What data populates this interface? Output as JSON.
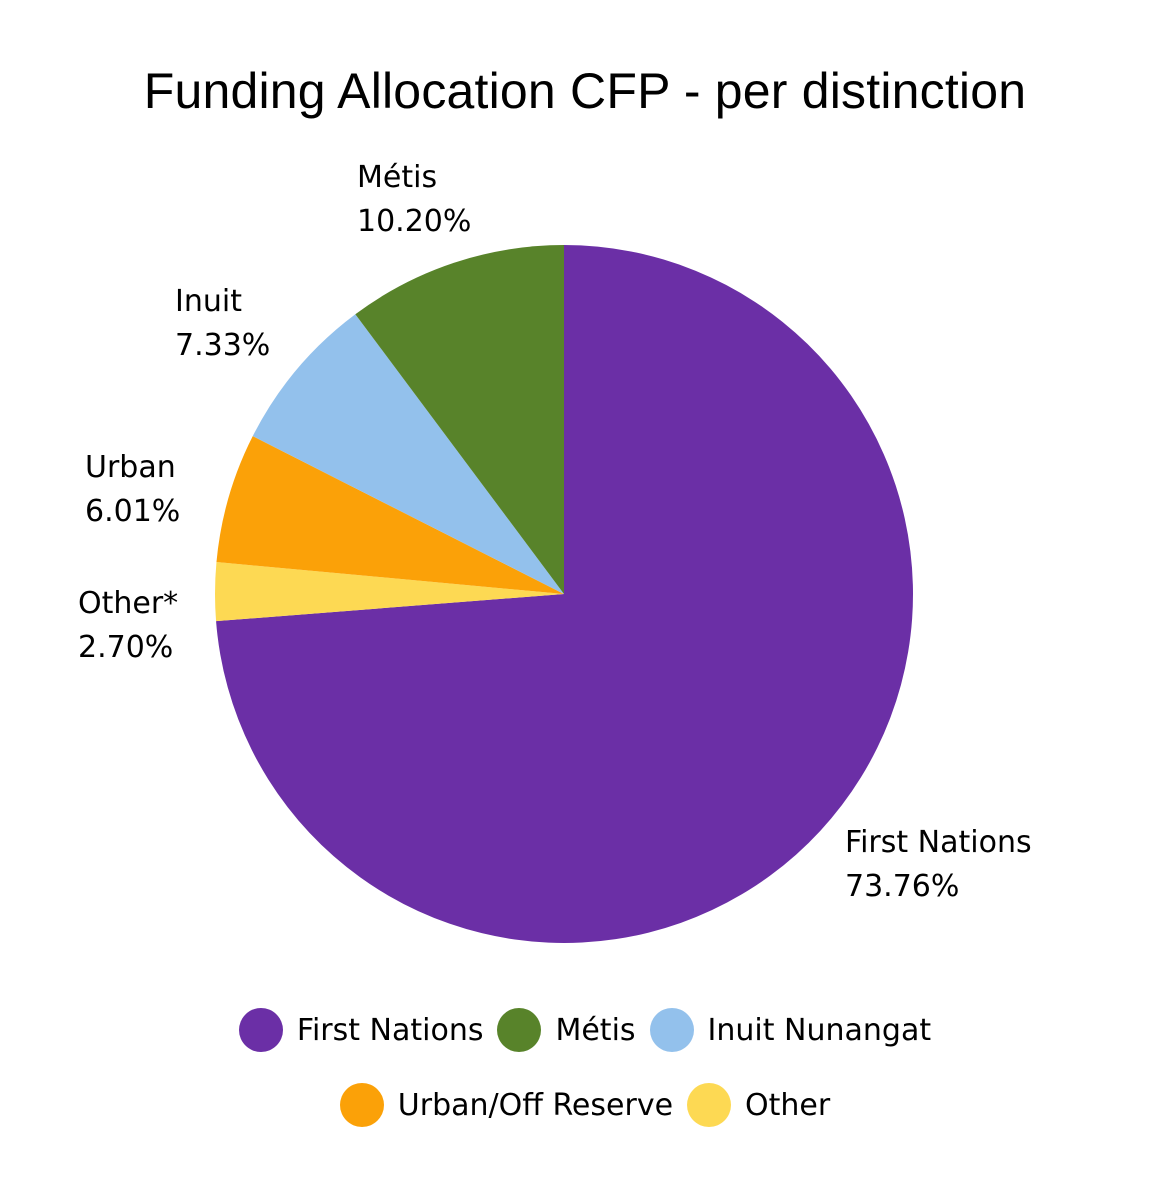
{
  "chart_data": {
    "type": "pie",
    "title": "Funding Allocation CFP - per distinction",
    "slices": [
      {
        "name": "First Nations",
        "label": "First Nations",
        "value": 73.76,
        "display": "73.76%",
        "color": "#6b2fa6"
      },
      {
        "name": "Other",
        "label": "Other*",
        "value": 2.7,
        "display": "2.70%",
        "color": "#fdd953"
      },
      {
        "name": "Urban/Off Reserve",
        "label": "Urban",
        "value": 6.01,
        "display": "6.01%",
        "color": "#fba108"
      },
      {
        "name": "Inuit Nunangat",
        "label": "Inuit",
        "value": 7.33,
        "display": "7.33%",
        "color": "#93c1ec"
      },
      {
        "name": "Métis",
        "label": "Métis",
        "value": 10.2,
        "display": "10.20%",
        "color": "#58832a"
      }
    ],
    "legend": {
      "position": "bottom",
      "rows": [
        [
          {
            "label": "First Nations",
            "color": "#6b2fa6"
          },
          {
            "label": "Métis",
            "color": "#58832a"
          },
          {
            "label": "Inuit Nunangat",
            "color": "#93c1ec"
          }
        ],
        [
          {
            "label": "Urban/Off Reserve",
            "color": "#fba108"
          },
          {
            "label": "Other",
            "color": "#fdd953"
          }
        ]
      ]
    },
    "start_angle": "12 o'clock, clockwise"
  }
}
